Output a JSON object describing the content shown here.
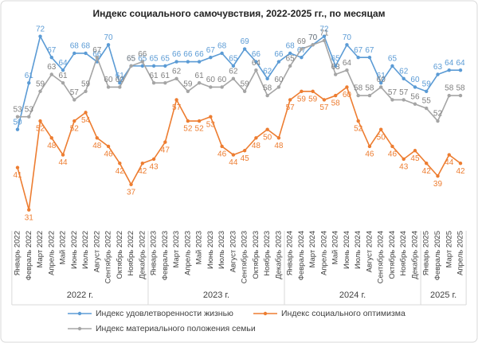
{
  "chart_data": {
    "type": "line",
    "title": "Индекс социального самочувствия, 2022-2025 гг., по месяцам",
    "categories": [
      "Январь 2022",
      "Февраль 2022",
      "Март 2022",
      "Апрель 2022",
      "Май 2022",
      "Июнь 2022",
      "Июль 2022",
      "Август 2022",
      "Сентябрь 2022",
      "Октябрь 2022",
      "Ноябрь 2022",
      "Декабрь 2022",
      "Январь 2023",
      "Февраль 2023",
      "Март 2023",
      "Апрель 2023",
      "Май 2023",
      "Июнь 2023",
      "Июль 2023",
      "Август 2023",
      "Сентябрь 2023",
      "Октябрь 2023",
      "Ноябрь 2023",
      "Декабрь 2023",
      "Январь 2024",
      "Февраль 2024",
      "Март 2024",
      "Апрель 2024",
      "Май 2024",
      "Июнь 2024",
      "Июль 2024",
      "Август 2024",
      "Сентябрь 2024",
      "Октябрь 2024",
      "Ноябрь 2024",
      "Декабрь 2024",
      "Январь 2025",
      "Февраль 2025",
      "Март 2025",
      "Апрель 2025"
    ],
    "x_groups": [
      "2022 г.",
      "2023 г.",
      "2024 г.",
      "2025 г."
    ],
    "series": [
      {
        "name": "Индекс удовлетворенности жизнью",
        "color": "#5b9bd5",
        "values": [
          50,
          61,
          72,
          67,
          64,
          68,
          68,
          66,
          70,
          61,
          65,
          65,
          65,
          65,
          66,
          66,
          66,
          67,
          68,
          65,
          69,
          66,
          62,
          66,
          68,
          67,
          70,
          72,
          65,
          70,
          67,
          67,
          61,
          65,
          62,
          60,
          59,
          63,
          64,
          64
        ]
      },
      {
        "name": "Индекс социального оптимизма",
        "color": "#ed7d31",
        "values": [
          41,
          31,
          52,
          48,
          44,
          52,
          54,
          48,
          46,
          42,
          37,
          42,
          43,
          47,
          57,
          52,
          52,
          53,
          46,
          44,
          45,
          48,
          50,
          48,
          57,
          59,
          59,
          57,
          58,
          60,
          52,
          46,
          50,
          46,
          43,
          45,
          42,
          39,
          44,
          42
        ]
      },
      {
        "name": "Индекс материального положения семьи",
        "color": "#a5a5a5",
        "values": [
          53,
          53,
          59,
          63,
          61,
          57,
          59,
          67,
          60,
          60,
          65,
          66,
          61,
          61,
          62,
          59,
          61,
          60,
          60,
          62,
          59,
          64,
          58,
          60,
          65,
          69,
          70,
          71,
          63,
          64,
          58,
          58,
          60,
          57,
          57,
          56,
          55,
          52,
          58,
          58
        ]
      }
    ],
    "ylim": [
      27,
      74
    ],
    "legend": "bottom"
  }
}
